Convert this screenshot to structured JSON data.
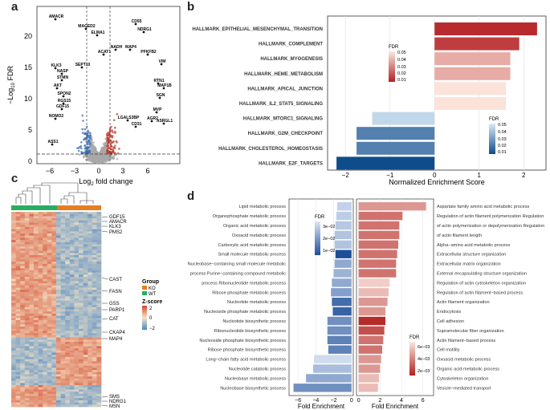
{
  "panels": {
    "a": "a",
    "b": "b",
    "c": "c",
    "d": "d"
  },
  "panel_a": {
    "xlabel_pre": "Log",
    "xlabel_sub": "2",
    "xlabel_post": " fold change",
    "ylabel_pre": "−Log",
    "ylabel_sub": "10",
    "ylabel_post": " FDR",
    "xticks": [
      "−6",
      "−3",
      "0",
      "3",
      "6"
    ],
    "yticks": [
      "0",
      "5",
      "10",
      "15",
      "20"
    ],
    "genes": [
      "AMACR",
      "MAGED2",
      "ELMA1",
      "CD55",
      "NDRG1",
      "MAP4",
      "NADH",
      "ACAT1",
      "PFKFB2",
      "VIM",
      "KLK3",
      "SEPT10",
      "NASP",
      "STMN",
      "AKT",
      "SPON2",
      "RGS15",
      "GDF15",
      "NOMO2",
      "RTN1",
      "MAP1B",
      "SGN",
      "MVP",
      "LGALS3BP",
      "AGR2",
      "CD31",
      "ASRGL1",
      "ASS1"
    ],
    "colors": {
      "up": "#c0392b",
      "down": "#3a6eb5",
      "ns": "#a8a8a8"
    }
  },
  "panel_b": {
    "chart_data": {
      "type": "bar",
      "orientation": "horizontal",
      "xlabel": "Normalized Enrichment Score",
      "xlim": [
        -2.4,
        2.5
      ],
      "xticks": [
        "−2",
        "−1",
        "0",
        "1",
        "2"
      ],
      "categories": [
        "HALLMARK_EPITHELIAL_MESENCHYMAL_TRANSITION",
        "HALLMARK_COMPLEMENT",
        "HALLMARK_MYOGENESIS",
        "HALLMARK_HEME_METABOLISM",
        "HALLMARK_APICAL_JUNCTION",
        "HALLMARK_IL2_STAT5_SIGNALING",
        "HALLMARK_MTORC1_SIGNALING",
        "HALLMARK_G2M_CHECKPOINT",
        "HALLMARK_CHOLESTEROL_HOMEOSTASIS",
        "HALLMARK_E2F_TARGETS"
      ],
      "values": [
        2.3,
        1.9,
        1.7,
        1.7,
        1.6,
        1.6,
        -1.4,
        -1.75,
        -1.75,
        -2.2
      ],
      "fdr": [
        0.005,
        0.01,
        0.04,
        0.04,
        0.055,
        0.055,
        0.05,
        0.02,
        0.02,
        0.002
      ],
      "legend_title_pos": "FDR",
      "legend_ticks_pos": [
        "0.05",
        "0.04",
        "0.03",
        "0.02",
        "0.01"
      ],
      "legend_title_neg": "FDR",
      "legend_ticks_neg": [
        "0.05",
        "0.04",
        "0.03",
        "0.02",
        "0.01"
      ]
    }
  },
  "panel_c": {
    "genes": [
      "GDF15",
      "AMACR",
      "KLK3",
      "PMS2",
      "CAST",
      "FASN",
      "GSS",
      "PARP1",
      "CAT",
      "CKAP4",
      "MAP4",
      "SMS",
      "NDRG1",
      "MSN"
    ],
    "legend_group_title": "Group",
    "legend_ko": "KO",
    "legend_wt": "WT",
    "legend_z_title": "Z-score",
    "legend_z_ticks": [
      "2",
      "0",
      "−2"
    ],
    "colors": {
      "ko": "#e67e22",
      "wt": "#27ae60",
      "high": "#d4452b",
      "mid": "#f5e6c8",
      "low": "#4a84c4"
    }
  },
  "panel_d": {
    "chart_data": [
      {
        "type": "bar",
        "orientation": "horizontal",
        "xlabel": "Fold Enrichment",
        "xticks": [
          "−6",
          "−4",
          "−2",
          "0"
        ],
        "xlim": [
          -7,
          0.2
        ],
        "categories": [
          "Lipid metabolic process",
          "Organophosphate metabolic process",
          "Organic acid metabolic process",
          "Oxoacid metabolic process",
          "Carboxylic acid metabolic process",
          "Small molecule metabolic process",
          "Nucleobase−containing small molecule metabolic",
          "process Purine−containing compound metabolic",
          "process Ribonucleotide metabolic process",
          "Ribose phosphate metabolic process",
          "Nucleotide metabolic process",
          "Nucleoside phosphate metabolic process",
          "Nucleotide biosynthetic process",
          "Ribonucleotide biosynthetic process",
          "Nucleoside phosphate biosynthetic process",
          "Ribose phosphate biosynthetic process",
          "Long−chain fatty acid metabolic process",
          "Nucleotide catabolic process",
          "Nucleobase metabolic process",
          "Nucleobase biosynthetic process"
        ],
        "values": [
          -1.6,
          -1.7,
          -1.8,
          -1.9,
          -1.9,
          -1.8,
          -1.9,
          -2.0,
          -2.2,
          -2.3,
          -2.2,
          -2.1,
          -2.7,
          -2.7,
          -2.7,
          -2.6,
          -4.2,
          -4.3,
          -5.1,
          -6.5
        ],
        "fdr": [
          0.028,
          0.027,
          0.026,
          0.025,
          0.025,
          0.002,
          0.02,
          0.022,
          0.02,
          0.018,
          0.008,
          0.006,
          0.015,
          0.015,
          0.012,
          0.012,
          0.03,
          0.024,
          0.02,
          0.015
        ],
        "legend_title": "FDR",
        "legend_ticks": [
          "3e−02",
          "2e−02",
          "1e−02"
        ]
      },
      {
        "type": "bar",
        "orientation": "horizontal",
        "xlabel": "Fold Enrichment",
        "xticks": [
          "0",
          "2",
          "4",
          "6"
        ],
        "xlim": [
          -0.2,
          7
        ],
        "categories": [
          "Aspartate family amino acid metabolic process",
          "Regulation of actin filament polymerization Regulation",
          "of actin polymerization or depolymerization Regulation",
          "of actin filament length",
          "Alpha−amino acid metabolic process",
          "Extracellular structure organization",
          "Extracellular matrix organization",
          "External encapsulating structure organization",
          "Regulation of actin cytoskeleton organization",
          "Regulation of actin filament−based process",
          "Actin filament organization",
          "Endocytosis",
          "Cell adhesion",
          "Supramolecular fiber organization",
          "Actin filament−based process",
          "Cell motility",
          "Oxoacid metabolic process",
          "Organic acid metabolic process",
          "Cytoskeleton organization",
          "Vesicle−mediated transport"
        ],
        "values": [
          6.3,
          4.1,
          3.8,
          3.8,
          3.7,
          3.6,
          3.5,
          3.5,
          2.9,
          2.8,
          2.7,
          2.5,
          2.5,
          2.4,
          2.3,
          2.2,
          2.1,
          2.0,
          1.9,
          1.8
        ],
        "fdr": [
          0.004,
          0.003,
          0.003,
          0.003,
          0.003,
          0.003,
          0.003,
          0.003,
          0.0055,
          0.005,
          0.004,
          0.004,
          0.001,
          0.002,
          0.003,
          0.003,
          0.004,
          0.004,
          0.005,
          0.005
        ],
        "legend_title": "FDR",
        "legend_ticks": [
          "6e−03",
          "4e−03",
          "2e−03"
        ]
      }
    ]
  }
}
